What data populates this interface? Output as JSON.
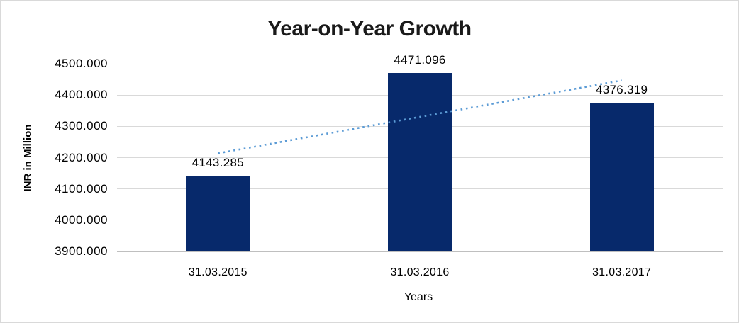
{
  "window": {
    "background": "#ffffff",
    "border_color": "#d9d9d9",
    "left_edge_color": "#3f3f3f"
  },
  "chart_data": {
    "type": "bar",
    "title": "Year-on-Year Growth",
    "xlabel": "Years",
    "ylabel": "INR in Million",
    "categories": [
      "31.03.2015",
      "31.03.2016",
      "31.03.2017"
    ],
    "series": [
      {
        "name": "INR in Million",
        "values": [
          4143.285,
          4471.096,
          4376.319
        ]
      }
    ],
    "data_labels": [
      "4143.285",
      "4471.096",
      "4376.319"
    ],
    "ylim": [
      3900,
      4500
    ],
    "ytick_step": 100,
    "ytick_labels": [
      "3900.000",
      "4000.000",
      "4100.000",
      "4200.000",
      "4300.000",
      "4400.000",
      "4500.000"
    ],
    "grid": true,
    "legend": "none",
    "trendline": {
      "type": "linear",
      "style": "dotted"
    },
    "colors": {
      "bar": "#07296b",
      "trendline": "#5b9bd5",
      "gridline": "#d9d9d9",
      "axis_line": "#bfbfbf",
      "text": "#000000",
      "title_text": "#1a1a1a"
    }
  }
}
